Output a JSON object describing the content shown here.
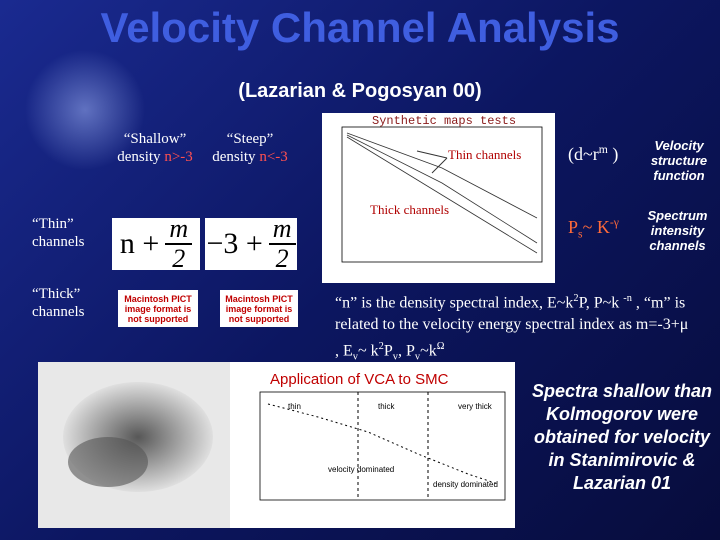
{
  "title": "Velocity Channel Analysis",
  "subtitle": "(Lazarian & Pogosyan 00)",
  "table": {
    "headers": [
      {
        "label": "“Shallow”",
        "quantity": "density",
        "condition": "n>-3"
      },
      {
        "label": "“Steep”",
        "quantity": "density",
        "condition": "n<-3"
      }
    ],
    "rows": [
      {
        "label": "“Thin” channels",
        "formulas": [
          {
            "term": "n +",
            "numerator": "m",
            "denominator": "2"
          },
          {
            "term": "−3 +",
            "numerator": "m",
            "denominator": "2"
          }
        ]
      },
      {
        "label": "“Thick” channels",
        "images": [
          "Macintosh PICT image format is not supported",
          "Macintosh PICT image format is not supported"
        ]
      }
    ]
  },
  "synthetic_plot": {
    "title": "Synthetic maps tests",
    "annotations": [
      "Thin channels",
      "Thick channels"
    ]
  },
  "relations": [
    {
      "formula": [
        {
          "text": "(d~r"
        },
        {
          "text": "m",
          "style": "sup"
        },
        {
          "text": " )"
        }
      ],
      "description": "Velocity structure function"
    },
    {
      "formula": [
        {
          "text": "P"
        },
        {
          "text": "s",
          "style": "sub"
        },
        {
          "text": "~ K"
        },
        {
          "text": "-γ",
          "style": "sup"
        }
      ],
      "description": "Spectrum intensity channels"
    }
  ],
  "paragraph": [
    {
      "text": "“n” is the density spectral index, E~k"
    },
    {
      "text": "2",
      "style": "sup"
    },
    {
      "text": "P, P~k "
    },
    {
      "text": "-n",
      "style": "sup"
    },
    {
      "text": " , “m” is related to the velocity energy spectral index as m=-3+μ , E"
    },
    {
      "text": "v",
      "style": "sub"
    },
    {
      "text": "~ k"
    },
    {
      "text": "2",
      "style": "sup"
    },
    {
      "text": "P"
    },
    {
      "text": "v",
      "style": "sub"
    },
    {
      "text": ", P"
    },
    {
      "text": "v",
      "style": "sub"
    },
    {
      "text": "~k"
    },
    {
      "text": "Ω",
      "style": "sup"
    }
  ],
  "smc": {
    "caption": "Application of VCA to SMC",
    "plot_labels": [
      "thin",
      "thick",
      "very thick",
      "velocity dominated",
      "density dominated"
    ]
  },
  "conclusion": "Spectra shallow than Kolmogorov were obtained for velocity in Stanimirovic & Lazarian 01"
}
